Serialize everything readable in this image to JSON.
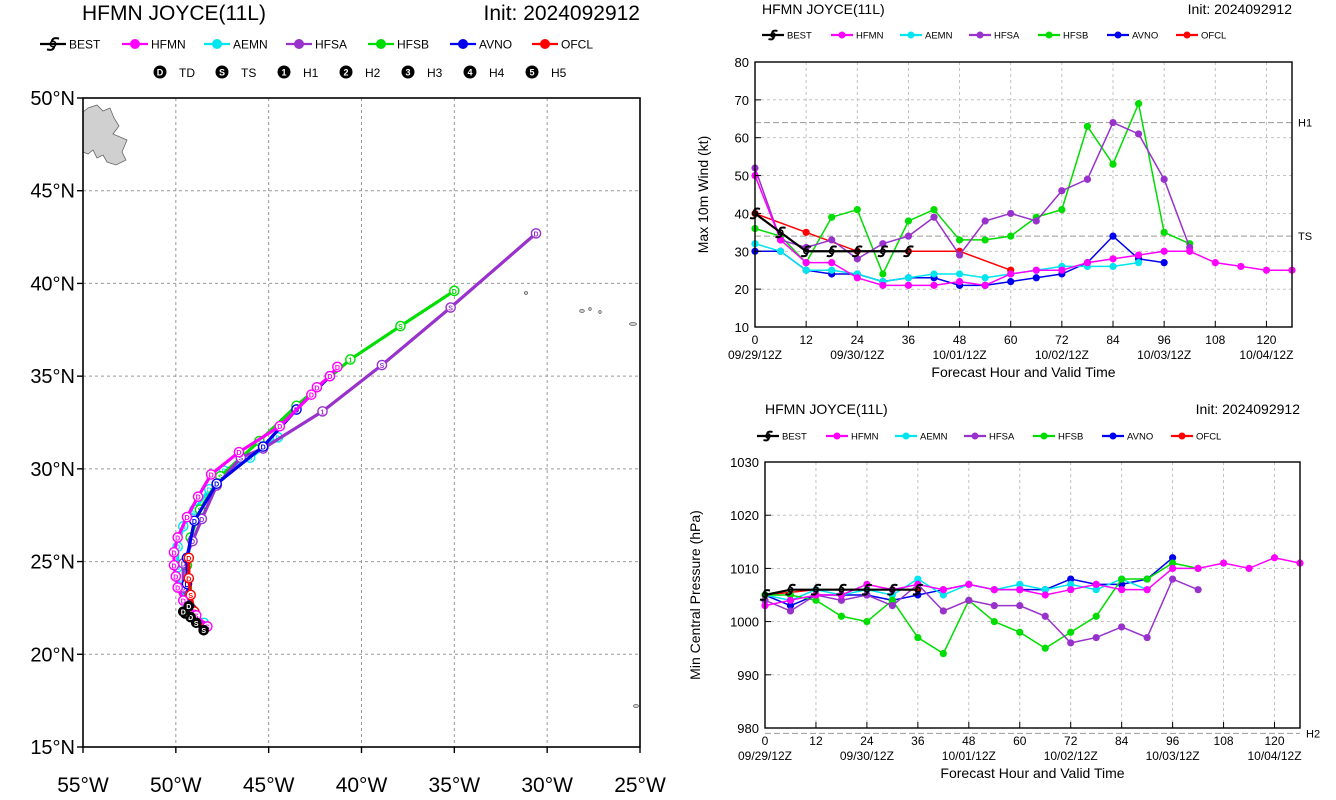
{
  "legend_models": [
    {
      "name": "BEST",
      "color": "#000000"
    },
    {
      "name": "HFMN",
      "color": "#ff00ff"
    },
    {
      "name": "AEMN",
      "color": "#00e5ee"
    },
    {
      "name": "HFSA",
      "color": "#9932cc"
    },
    {
      "name": "HFSB",
      "color": "#00dd00"
    },
    {
      "name": "AVNO",
      "color": "#0000ee"
    },
    {
      "name": "OFCL",
      "color": "#ff0000"
    }
  ],
  "intensity_legend": [
    {
      "symbol": "D",
      "label": "TD"
    },
    {
      "symbol": "S",
      "label": "TS"
    },
    {
      "symbol": "1",
      "label": "H1"
    },
    {
      "symbol": "2",
      "label": "H2"
    },
    {
      "symbol": "3",
      "label": "H3"
    },
    {
      "symbol": "4",
      "label": "H4"
    },
    {
      "symbol": "5",
      "label": "H5"
    }
  ],
  "chart_data": [
    {
      "type": "line",
      "title": "HFMN JOYCE(11L)",
      "init_label": "Init: 2024092912",
      "xlabel": "",
      "ylabel": "",
      "xlim": [
        -55,
        -25
      ],
      "ylim": [
        15,
        50
      ],
      "x_tick_labels": [
        "55°W",
        "50°W",
        "45°W",
        "40°W",
        "35°W",
        "30°W",
        "25°W"
      ],
      "y_tick_labels": [
        "15°N",
        "20°N",
        "25°N",
        "30°N",
        "35°N",
        "40°N",
        "45°N",
        "50°N"
      ],
      "series": [
        {
          "name": "BEST",
          "points": [
            [
              -48.5,
              21.3
            ],
            [
              -48.9,
              21.7
            ],
            [
              -49.2,
              22.0
            ],
            [
              -49.5,
              22.2
            ],
            [
              -49.6,
              22.3
            ],
            [
              -49.3,
              22.6
            ]
          ],
          "labels": [
            "S",
            "S",
            "D",
            "D",
            "D",
            "D"
          ]
        },
        {
          "name": "HFMN",
          "points": [
            [
              -48.3,
              21.5
            ],
            [
              -48.9,
              22.1
            ],
            [
              -49.6,
              22.9
            ],
            [
              -49.9,
              23.6
            ],
            [
              -50.0,
              24.2
            ],
            [
              -50.1,
              24.8
            ],
            [
              -50.1,
              25.5
            ],
            [
              -49.9,
              26.3
            ],
            [
              -49.4,
              27.4
            ],
            [
              -48.8,
              28.5
            ],
            [
              -48.1,
              29.7
            ],
            [
              -46.6,
              30.9
            ],
            [
              -44.4,
              32.3
            ],
            [
              -42.7,
              34.0
            ],
            [
              -42.4,
              34.4
            ],
            [
              -41.7,
              35.0
            ],
            [
              -41.3,
              35.5
            ]
          ],
          "labels": [
            "S",
            "S",
            "D",
            "D",
            "D",
            "D",
            "D",
            "D",
            "D",
            "D",
            "D",
            "D",
            "D",
            "D",
            "D",
            "D",
            "D"
          ]
        },
        {
          "name": "AEMN",
          "points": [
            [
              -48.5,
              21.7
            ],
            [
              -49.3,
              22.5
            ],
            [
              -49.8,
              23.6
            ],
            [
              -49.9,
              24.7
            ],
            [
              -49.9,
              25.8
            ],
            [
              -49.6,
              26.9
            ],
            [
              -49.0,
              27.8
            ],
            [
              -48.2,
              28.9
            ],
            [
              -47.4,
              29.9
            ],
            [
              -46.0,
              30.6
            ],
            [
              -44.5,
              31.7
            ]
          ],
          "labels": [
            "S",
            "S",
            "D",
            "D",
            "D",
            "D",
            "D",
            "D",
            "D",
            "D",
            "D"
          ]
        },
        {
          "name": "HFSA",
          "points": [
            [
              -48.5,
              21.5
            ],
            [
              -49.2,
              22.3
            ],
            [
              -49.6,
              23.6
            ],
            [
              -49.6,
              24.9
            ],
            [
              -49.1,
              26.1
            ],
            [
              -48.6,
              27.3
            ],
            [
              -47.8,
              29.1
            ],
            [
              -46.5,
              30.6
            ],
            [
              -45.3,
              31.1
            ],
            [
              -42.1,
              33.1
            ],
            [
              -38.9,
              35.6
            ],
            [
              -35.2,
              38.7
            ],
            [
              -30.6,
              42.7
            ]
          ],
          "labels": [
            "S",
            "S",
            "D",
            "D",
            "D",
            "D",
            "S",
            "S",
            "S",
            "1",
            "S",
            "S",
            "D"
          ]
        },
        {
          "name": "HFSB",
          "points": [
            [
              -48.5,
              21.5
            ],
            [
              -49.1,
              22.4
            ],
            [
              -49.4,
              23.6
            ],
            [
              -49.4,
              24.8
            ],
            [
              -49.2,
              26.3
            ],
            [
              -48.7,
              27.8
            ],
            [
              -47.6,
              29.6
            ],
            [
              -45.5,
              31.5
            ],
            [
              -43.5,
              33.4
            ],
            [
              -40.6,
              35.9
            ],
            [
              -37.9,
              37.7
            ],
            [
              -35.0,
              39.6
            ]
          ],
          "labels": [
            "S",
            "S",
            "D",
            "D",
            "S",
            "S",
            "S",
            "S",
            "S",
            "1",
            "S",
            "D"
          ]
        },
        {
          "name": "AVNO",
          "points": [
            [
              -48.5,
              21.5
            ],
            [
              -49.2,
              22.5
            ],
            [
              -49.4,
              23.8
            ],
            [
              -49.4,
              25.2
            ],
            [
              -49.0,
              27.2
            ],
            [
              -47.8,
              29.2
            ],
            [
              -45.3,
              31.2
            ],
            [
              -43.5,
              33.2
            ],
            [
              -41.7,
              35.0
            ]
          ],
          "labels": [
            "D",
            "D",
            "D",
            "D",
            "D",
            "D",
            "D",
            "D",
            "D"
          ]
        },
        {
          "name": "OFCL",
          "points": [
            [
              -48.5,
              21.3
            ],
            [
              -49.0,
              22.3
            ],
            [
              -49.2,
              23.2
            ],
            [
              -49.3,
              24.1
            ],
            [
              -49.3,
              25.2
            ]
          ],
          "labels": [
            "S",
            "S",
            "S",
            "D",
            "D"
          ]
        }
      ]
    },
    {
      "type": "line",
      "title": "HFMN JOYCE(11L)",
      "init_label": "Init: 2024092912",
      "xlabel": "Forecast Hour and Valid Time",
      "ylabel": "Max 10m Wind (kt)",
      "xlim": [
        0,
        126
      ],
      "ylim": [
        10,
        80
      ],
      "x_ticks": [
        0,
        12,
        24,
        36,
        48,
        60,
        72,
        84,
        96,
        108,
        120
      ],
      "y_ticks": [
        10,
        20,
        30,
        40,
        50,
        60,
        70,
        80
      ],
      "date_labels": [
        "09/29/12Z",
        "09/30/12Z",
        "10/01/12Z",
        "10/02/12Z",
        "10/03/12Z",
        "10/04/12Z"
      ],
      "thresholds": [
        {
          "label": "H1",
          "value": 64
        },
        {
          "label": "TS",
          "value": 34
        }
      ],
      "series": [
        {
          "name": "BEST",
          "x": [
            0,
            6,
            12,
            18,
            24,
            30,
            36
          ],
          "y": [
            40,
            35,
            30,
            30,
            30,
            30,
            30
          ]
        },
        {
          "name": "HFMN",
          "x": [
            0,
            6,
            12,
            18,
            24,
            30,
            36,
            42,
            48,
            54,
            60,
            66,
            72,
            78,
            84,
            90,
            96,
            102,
            108,
            114,
            120,
            126
          ],
          "y": [
            50,
            33,
            27,
            27,
            23,
            21,
            21,
            21,
            22,
            21,
            24,
            25,
            25,
            27,
            28,
            29,
            30,
            30,
            27,
            26,
            25,
            25
          ]
        },
        {
          "name": "AEMN",
          "x": [
            0,
            6,
            12,
            18,
            24,
            30,
            36,
            42,
            48,
            54,
            60,
            66,
            72,
            78,
            84,
            90
          ],
          "y": [
            32,
            30,
            25,
            25,
            24,
            22,
            23,
            24,
            24,
            23,
            24,
            25,
            26,
            26,
            26,
            27
          ]
        },
        {
          "name": "HFSA",
          "x": [
            0,
            6,
            12,
            18,
            24,
            30,
            36,
            42,
            48,
            54,
            60,
            66,
            72,
            78,
            84,
            90,
            96,
            102
          ],
          "y": [
            52,
            33,
            31,
            33,
            28,
            32,
            34,
            39,
            29,
            38,
            40,
            38,
            46,
            49,
            64,
            61,
            49,
            31
          ]
        },
        {
          "name": "HFSB",
          "x": [
            0,
            6,
            12,
            18,
            24,
            30,
            36,
            42,
            48,
            54,
            60,
            66,
            72,
            78,
            84,
            90,
            96,
            102
          ],
          "y": [
            36,
            34,
            27,
            39,
            41,
            24,
            38,
            41,
            33,
            33,
            34,
            39,
            41,
            63,
            53,
            69,
            35,
            32
          ]
        },
        {
          "name": "AVNO",
          "x": [
            0,
            6,
            12,
            18,
            24,
            30,
            36,
            42,
            48,
            54,
            60,
            66,
            72,
            78,
            84,
            90,
            96
          ],
          "y": [
            30,
            30,
            25,
            24,
            24,
            22,
            23,
            23,
            21,
            21,
            22,
            23,
            24,
            27,
            34,
            28,
            27
          ]
        },
        {
          "name": "OFCL",
          "x": [
            0,
            12,
            24,
            36,
            48,
            60
          ],
          "y": [
            40,
            35,
            30,
            30,
            30,
            25
          ]
        }
      ]
    },
    {
      "type": "line",
      "title": "HFMN JOYCE(11L)",
      "init_label": "Init: 2024092912",
      "xlabel": "Forecast Hour and Valid Time",
      "ylabel": "Min Central Pressure (hPa)",
      "xlim": [
        0,
        126
      ],
      "ylim": [
        980,
        1030
      ],
      "x_ticks": [
        0,
        12,
        24,
        36,
        48,
        60,
        72,
        84,
        96,
        108,
        120
      ],
      "y_ticks": [
        980,
        990,
        1000,
        1010,
        1020,
        1030
      ],
      "date_labels": [
        "09/29/12Z",
        "09/30/12Z",
        "10/01/12Z",
        "10/02/12Z",
        "10/03/12Z",
        "10/04/12Z"
      ],
      "thresholds": [
        {
          "label": "H2",
          "value": 979
        }
      ],
      "series": [
        {
          "name": "BEST",
          "x": [
            0,
            6,
            12,
            18,
            24,
            30,
            36
          ],
          "y": [
            1005,
            1006,
            1006,
            1006,
            1006,
            1006,
            1006
          ]
        },
        {
          "name": "HFMN",
          "x": [
            0,
            6,
            12,
            18,
            24,
            30,
            36,
            42,
            48,
            54,
            60,
            66,
            72,
            78,
            84,
            90,
            96,
            102,
            108,
            114,
            120,
            126
          ],
          "y": [
            1003,
            1004,
            1005,
            1005,
            1007,
            1006,
            1007,
            1006,
            1007,
            1006,
            1006,
            1005,
            1006,
            1007,
            1006,
            1006,
            1010,
            1010,
            1011,
            1010,
            1012,
            1011
          ]
        },
        {
          "name": "AEMN",
          "x": [
            0,
            6,
            12,
            18,
            24,
            30,
            36,
            42,
            48,
            54,
            60,
            66,
            72,
            78,
            84,
            90
          ],
          "y": [
            1005,
            1004,
            1006,
            1005,
            1006,
            1005,
            1008,
            1005,
            1007,
            1006,
            1007,
            1006,
            1007,
            1006,
            1008,
            1006
          ]
        },
        {
          "name": "HFSA",
          "x": [
            0,
            6,
            12,
            18,
            24,
            30,
            36,
            42,
            48,
            54,
            60,
            66,
            72,
            78,
            84,
            90,
            96,
            102
          ],
          "y": [
            1004,
            1002,
            1005,
            1004,
            1005,
            1003,
            1007,
            1002,
            1004,
            1003,
            1003,
            1001,
            996,
            997,
            999,
            997,
            1008,
            1006
          ]
        },
        {
          "name": "HFSB",
          "x": [
            0,
            6,
            12,
            18,
            24,
            30,
            36,
            42,
            48,
            54,
            60,
            66,
            72,
            78,
            84,
            90,
            96,
            102
          ],
          "y": [
            1005,
            1005,
            1004,
            1001,
            1000,
            1004,
            997,
            994,
            1004,
            1000,
            998,
            995,
            998,
            1001,
            1008,
            1008,
            1011,
            1010
          ]
        },
        {
          "name": "AVNO",
          "x": [
            0,
            6,
            12,
            18,
            24,
            30,
            36,
            42,
            48,
            54,
            60,
            66,
            72,
            78,
            84,
            90,
            96
          ],
          "y": [
            1005,
            1003,
            1005,
            1005,
            1005,
            1004,
            1005,
            1006,
            1007,
            1006,
            1006,
            1006,
            1008,
            1007,
            1007,
            1008,
            1012
          ]
        },
        {
          "name": "OFCL",
          "x": [
            0,
            12,
            24,
            36
          ],
          "y": [
            1005,
            1006,
            1006,
            1006
          ]
        }
      ]
    }
  ]
}
